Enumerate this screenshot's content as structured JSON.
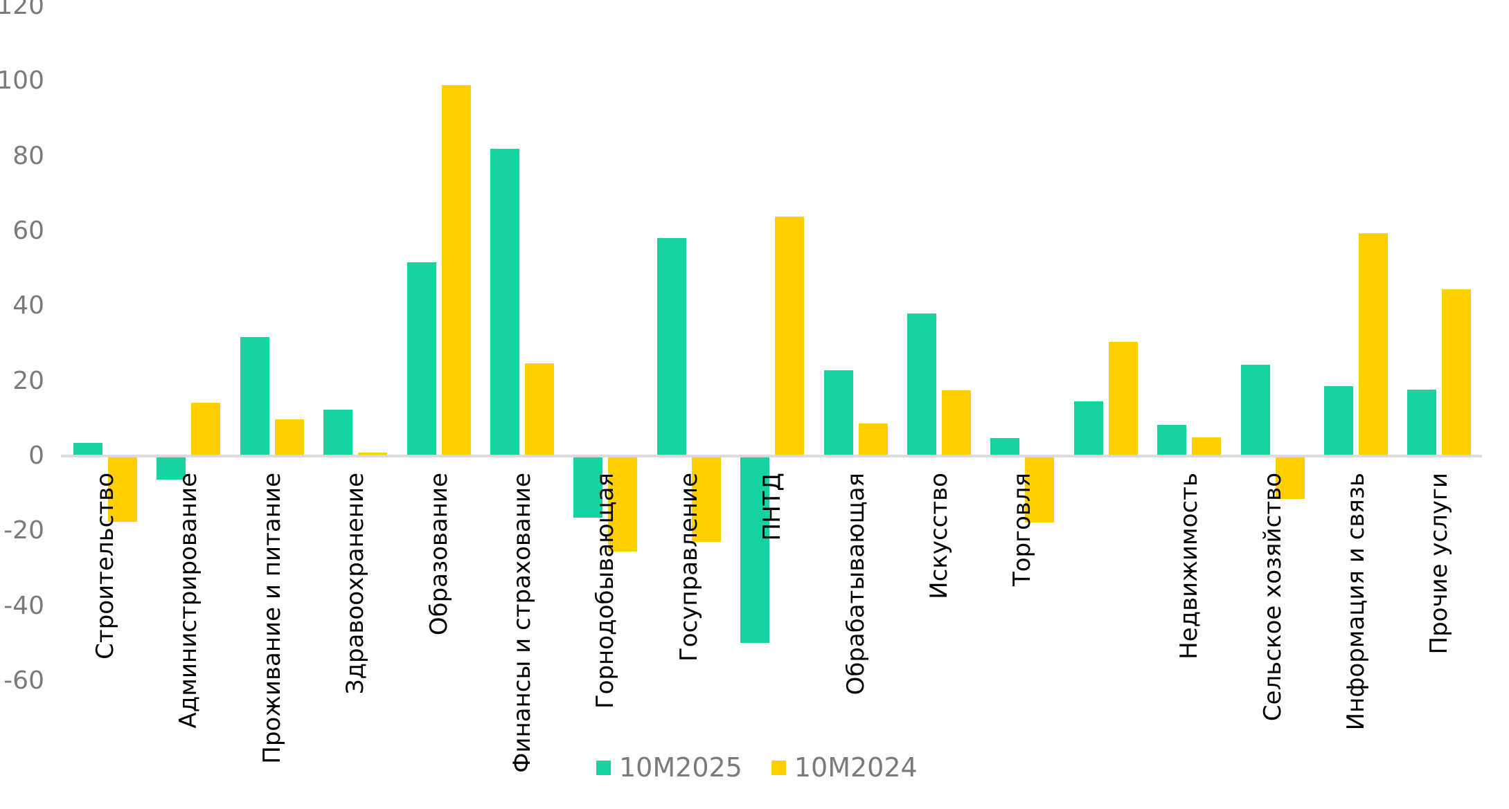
{
  "chart_data": {
    "type": "bar",
    "title": "",
    "xlabel": "",
    "ylabel": "",
    "grid": "off",
    "legend_position": "bottom-center",
    "ylim": [
      -60,
      120
    ],
    "y_ticks": [
      120,
      100,
      80,
      60,
      40,
      20,
      0,
      -20,
      -40,
      -60
    ],
    "categories": [
      "Строительство",
      "Администрирование",
      "Проживание и питание",
      "Здравоохранение",
      "Образование",
      "Финансы и страхование",
      "Горнодобывающая",
      "Госуправление",
      "ПНТД",
      "Обрабатывающая",
      "Искусство",
      "Торговля",
      "",
      "Недвижимость",
      "Сельское хозяйство",
      "Информация и связь",
      "Прочие услуги"
    ],
    "series": [
      {
        "name": "10М2025",
        "color": "#17D3A1",
        "values": [
          3.5,
          -6.3,
          31.7,
          12.3,
          51.7,
          81.9,
          -16.5,
          58.1,
          -49.8,
          22.9,
          38.0,
          4.8,
          14.6,
          8.3,
          24.4,
          18.6,
          17.7
        ]
      },
      {
        "name": "10М2024",
        "color": "#FFCF00",
        "values": [
          -17.6,
          14.2,
          9.8,
          0.9,
          98.9,
          24.7,
          -25.5,
          -22.9,
          63.8,
          8.7,
          17.5,
          -17.7,
          30.4,
          5.0,
          -11.4,
          59.4,
          44.5
        ]
      }
    ]
  },
  "colors": {
    "background": "#FFFFFF",
    "axis_line": "#D9D9D9",
    "tick_label_text": "#7A7A7A",
    "category_label_text": "#000000"
  }
}
